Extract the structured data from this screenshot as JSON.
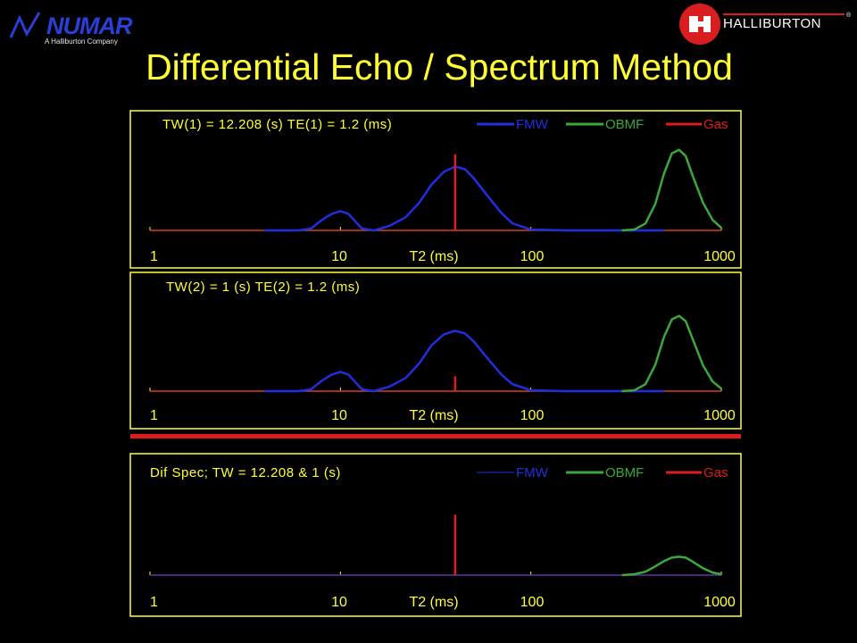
{
  "header": {
    "numar_logo": {
      "word": "NUMAR",
      "tagline": "A Halliburton Company"
    },
    "halliburton_logo": {
      "word": "HALLIBURTON",
      "reg": "®"
    },
    "title": "Differential Echo / Spectrum Method"
  },
  "colors": {
    "background": "#000000",
    "frame": "#ffff33",
    "title": "#ffff33",
    "axis_text": "#ffff33",
    "FMW": "#1f2fe0",
    "OBMF": "#3aa83a",
    "Gas": "#e01b1b",
    "separator": "#e01b1b"
  },
  "chart_data": [
    {
      "type": "line",
      "header_text": "TW(1) = 12.208 (s)   TE(1) = 1.2 (ms)",
      "x_scale": "log",
      "xlim": [
        1,
        1000
      ],
      "x_ticks": [
        "1",
        "10",
        "T2 (ms)",
        "100",
        "1000"
      ],
      "ylim": [
        0,
        1.1
      ],
      "legend": [
        "FMW",
        "OBMF",
        "Gas"
      ],
      "legend_position": "top-right",
      "series": [
        {
          "name": "FMW",
          "x": [
            4,
            6,
            7,
            8,
            9,
            10,
            11,
            12,
            13,
            15,
            18,
            22,
            26,
            30,
            35,
            40,
            45,
            50,
            60,
            70,
            80,
            100,
            150,
            500
          ],
          "y": [
            0,
            0,
            0.02,
            0.12,
            0.19,
            0.22,
            0.19,
            0.1,
            0.02,
            0,
            0.05,
            0.15,
            0.32,
            0.52,
            0.67,
            0.73,
            0.7,
            0.6,
            0.38,
            0.2,
            0.08,
            0.01,
            0,
            0
          ]
        },
        {
          "name": "OBMF",
          "x": [
            300,
            350,
            400,
            450,
            500,
            550,
            600,
            650,
            700,
            800,
            900,
            1000
          ],
          "y": [
            0,
            0.01,
            0.08,
            0.3,
            0.65,
            0.88,
            0.92,
            0.85,
            0.65,
            0.32,
            0.12,
            0.03
          ]
        },
        {
          "name": "Gas",
          "x": [
            40,
            40
          ],
          "y": [
            0,
            0.87
          ]
        }
      ]
    },
    {
      "type": "line",
      "header_text": "TW(2) = 1 (s)   TE(2) = 1.2 (ms)",
      "x_scale": "log",
      "xlim": [
        1,
        1000
      ],
      "x_ticks": [
        "1",
        "10",
        "T2 (ms)",
        "100",
        "1000"
      ],
      "ylim": [
        0,
        1.1
      ],
      "series": [
        {
          "name": "FMW",
          "x": [
            4,
            6,
            7,
            8,
            9,
            10,
            11,
            12,
            13,
            15,
            18,
            22,
            26,
            30,
            35,
            40,
            45,
            50,
            60,
            70,
            80,
            100,
            150,
            500
          ],
          "y": [
            0,
            0,
            0.02,
            0.12,
            0.19,
            0.22,
            0.19,
            0.1,
            0.02,
            0,
            0.05,
            0.15,
            0.32,
            0.52,
            0.65,
            0.69,
            0.66,
            0.57,
            0.36,
            0.19,
            0.08,
            0.01,
            0,
            0
          ]
        },
        {
          "name": "OBMF",
          "x": [
            300,
            350,
            400,
            450,
            500,
            550,
            600,
            650,
            700,
            800,
            900,
            1000
          ],
          "y": [
            0,
            0.01,
            0.08,
            0.3,
            0.62,
            0.82,
            0.86,
            0.8,
            0.62,
            0.3,
            0.11,
            0.03
          ]
        },
        {
          "name": "Gas",
          "x": [
            40,
            40
          ],
          "y": [
            0,
            0.17
          ]
        }
      ]
    },
    {
      "type": "line",
      "header_text": "Dif Spec; TW = 12.208 & 1 (s)",
      "x_scale": "log",
      "xlim": [
        1,
        1000
      ],
      "x_ticks": [
        "1",
        "10",
        "T2 (ms)",
        "100",
        "1000"
      ],
      "ylim": [
        0,
        1.1
      ],
      "legend": [
        "FMW",
        "OBMF",
        "Gas"
      ],
      "legend_position": "top-right",
      "series": [
        {
          "name": "FMW",
          "x": [
            1,
            1000
          ],
          "y": [
            0,
            0
          ]
        },
        {
          "name": "OBMF",
          "x": [
            300,
            350,
            400,
            450,
            500,
            550,
            600,
            650,
            700,
            800,
            900,
            1000
          ],
          "y": [
            0,
            0.01,
            0.04,
            0.1,
            0.16,
            0.2,
            0.21,
            0.2,
            0.16,
            0.08,
            0.03,
            0.01
          ]
        },
        {
          "name": "Gas",
          "x": [
            40,
            40
          ],
          "y": [
            0,
            0.69
          ]
        }
      ]
    }
  ]
}
